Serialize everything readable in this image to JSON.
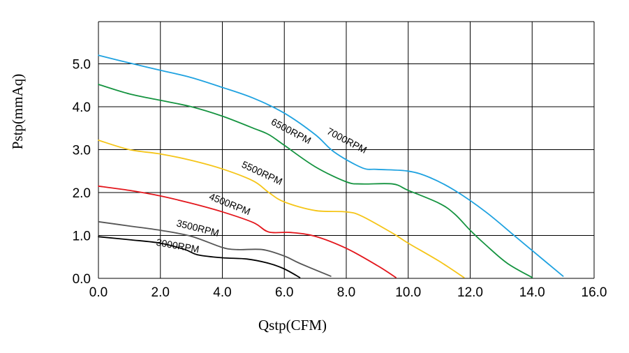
{
  "chart_data": {
    "type": "line",
    "xlabel": "Qstp(CFM)",
    "ylabel": "Pstp(mmAq)",
    "xlim": [
      0,
      16
    ],
    "ylim": [
      0,
      5.5
    ],
    "grid": true,
    "x_ticks": [
      "0.0",
      "2.0",
      "4.0",
      "6.0",
      "8.0",
      "10.0",
      "12.0",
      "14.0",
      "16.0"
    ],
    "y_ticks": [
      "0.0",
      "1.0",
      "2.0",
      "3.0",
      "4.0",
      "5.0"
    ],
    "series": [
      {
        "name": "7000RPM",
        "color": "#1fa2e0",
        "points": [
          [
            0.0,
            5.2
          ],
          [
            1.0,
            5.02
          ],
          [
            2.0,
            4.85
          ],
          [
            3.0,
            4.68
          ],
          [
            4.0,
            4.45
          ],
          [
            5.0,
            4.2
          ],
          [
            6.0,
            3.85
          ],
          [
            7.0,
            3.35
          ],
          [
            7.6,
            2.95
          ],
          [
            8.5,
            2.58
          ],
          [
            9.0,
            2.54
          ],
          [
            10.0,
            2.5
          ],
          [
            10.7,
            2.35
          ],
          [
            11.5,
            2.05
          ],
          [
            12.5,
            1.55
          ],
          [
            13.5,
            0.95
          ],
          [
            14.5,
            0.35
          ],
          [
            15.0,
            0.05
          ]
        ]
      },
      {
        "name": "6500RPM",
        "color": "#14933f",
        "points": [
          [
            0.0,
            4.52
          ],
          [
            1.0,
            4.3
          ],
          [
            2.0,
            4.15
          ],
          [
            3.0,
            4.0
          ],
          [
            4.0,
            3.78
          ],
          [
            5.0,
            3.5
          ],
          [
            5.5,
            3.35
          ],
          [
            6.0,
            3.1
          ],
          [
            7.0,
            2.6
          ],
          [
            8.0,
            2.25
          ],
          [
            8.5,
            2.2
          ],
          [
            9.5,
            2.2
          ],
          [
            10.0,
            2.05
          ],
          [
            11.0,
            1.75
          ],
          [
            11.5,
            1.5
          ],
          [
            12.0,
            1.12
          ],
          [
            12.5,
            0.78
          ],
          [
            13.2,
            0.35
          ],
          [
            14.0,
            0.02
          ]
        ]
      },
      {
        "name": "5500RPM",
        "color": "#f5c518",
        "points": [
          [
            0.0,
            3.22
          ],
          [
            1.0,
            3.0
          ],
          [
            2.0,
            2.9
          ],
          [
            3.0,
            2.75
          ],
          [
            4.0,
            2.55
          ],
          [
            5.0,
            2.27
          ],
          [
            5.5,
            2.0
          ],
          [
            6.0,
            1.78
          ],
          [
            7.0,
            1.58
          ],
          [
            8.0,
            1.55
          ],
          [
            8.5,
            1.45
          ],
          [
            9.5,
            1.05
          ],
          [
            10.0,
            0.82
          ],
          [
            11.0,
            0.4
          ],
          [
            11.8,
            0.02
          ]
        ]
      },
      {
        "name": "4500RPM",
        "color": "#e3161c",
        "points": [
          [
            0.0,
            2.15
          ],
          [
            1.0,
            2.05
          ],
          [
            2.0,
            1.92
          ],
          [
            3.0,
            1.75
          ],
          [
            4.0,
            1.55
          ],
          [
            5.0,
            1.3
          ],
          [
            5.5,
            1.08
          ],
          [
            6.2,
            1.07
          ],
          [
            7.0,
            0.98
          ],
          [
            8.0,
            0.7
          ],
          [
            9.0,
            0.3
          ],
          [
            9.6,
            0.02
          ]
        ]
      },
      {
        "name": "3500RPM",
        "color": "#555555",
        "points": [
          [
            0.0,
            1.32
          ],
          [
            1.0,
            1.22
          ],
          [
            2.0,
            1.12
          ],
          [
            3.0,
            0.98
          ],
          [
            4.0,
            0.72
          ],
          [
            4.5,
            0.67
          ],
          [
            5.3,
            0.67
          ],
          [
            6.0,
            0.52
          ],
          [
            6.5,
            0.35
          ],
          [
            7.5,
            0.05
          ]
        ]
      },
      {
        "name": "3000RPM",
        "color": "#000000",
        "points": [
          [
            0.0,
            0.97
          ],
          [
            1.0,
            0.9
          ],
          [
            2.0,
            0.82
          ],
          [
            2.8,
            0.67
          ],
          [
            3.2,
            0.55
          ],
          [
            4.0,
            0.48
          ],
          [
            4.8,
            0.45
          ],
          [
            5.5,
            0.35
          ],
          [
            6.0,
            0.22
          ],
          [
            6.5,
            0.02
          ]
        ]
      }
    ],
    "annotations": [
      {
        "text": "7000RPM",
        "x": 7.35,
        "y": 3.38,
        "angle": 28
      },
      {
        "text": "6500RPM",
        "x": 5.55,
        "y": 3.6,
        "angle": 28
      },
      {
        "text": "5500RPM",
        "x": 4.6,
        "y": 2.6,
        "angle": 25
      },
      {
        "text": "4500RPM",
        "x": 3.55,
        "y": 1.85,
        "angle": 22
      },
      {
        "text": "3500RPM",
        "x": 2.5,
        "y": 1.22,
        "angle": 14
      },
      {
        "text": "3000RPM",
        "x": 1.85,
        "y": 0.77,
        "angle": 10
      }
    ]
  }
}
